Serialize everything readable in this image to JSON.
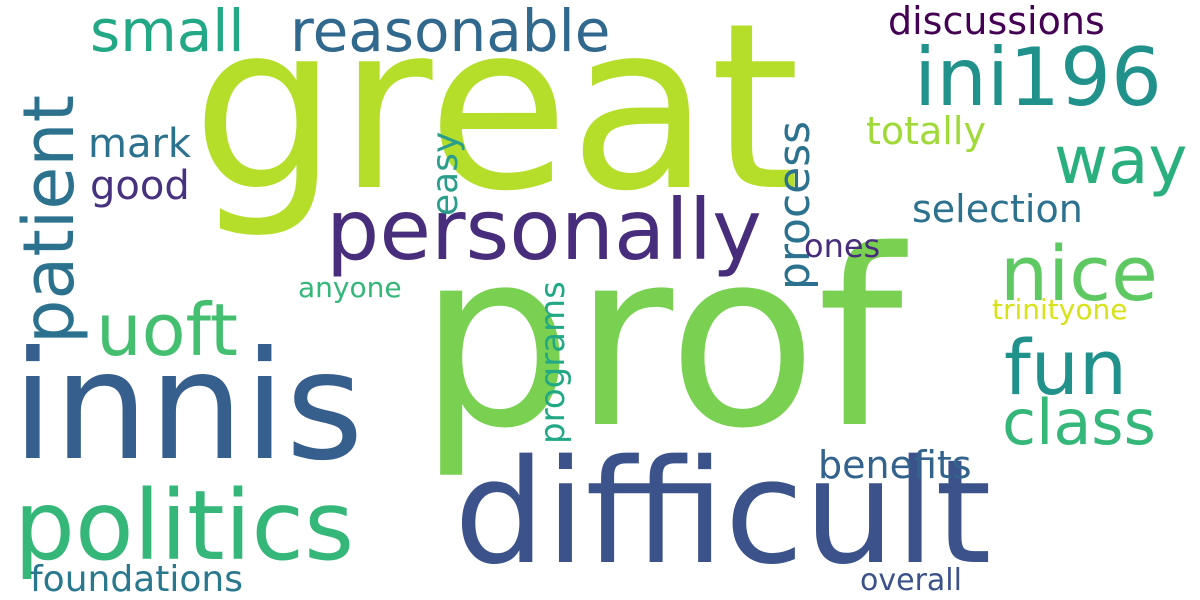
{
  "colors": {
    "background": "#ffffff",
    "lime": "#b5de2b",
    "green": "#7ad151",
    "light_green": "#44bf70",
    "teal": "#22a884",
    "cyan": "#21918c",
    "blue": "#2c728e",
    "indigo": "#3b528b",
    "purple": "#472d7b",
    "dark_purple": "#440154",
    "yellow": "#d8e219"
  },
  "words": [
    {
      "id": "great",
      "text": "great"
    },
    {
      "id": "prof",
      "text": "prof"
    },
    {
      "id": "innis",
      "text": "innis"
    },
    {
      "id": "difficult",
      "text": "difficult"
    },
    {
      "id": "personally",
      "text": "personally"
    },
    {
      "id": "politics",
      "text": "politics"
    },
    {
      "id": "patient",
      "text": "patient"
    },
    {
      "id": "uoft",
      "text": "uoft"
    },
    {
      "id": "ini196",
      "text": "ini196"
    },
    {
      "id": "way",
      "text": "way"
    },
    {
      "id": "nice",
      "text": "nice"
    },
    {
      "id": "fun",
      "text": "fun"
    },
    {
      "id": "class",
      "text": "class"
    },
    {
      "id": "reasonable",
      "text": "reasonable"
    },
    {
      "id": "small",
      "text": "small"
    },
    {
      "id": "process",
      "text": "process"
    },
    {
      "id": "discussions",
      "text": "discussions"
    },
    {
      "id": "selection",
      "text": "selection"
    },
    {
      "id": "benefits",
      "text": "benefits"
    },
    {
      "id": "programs",
      "text": "programs"
    },
    {
      "id": "totally",
      "text": "totally"
    },
    {
      "id": "mark",
      "text": "mark"
    },
    {
      "id": "good",
      "text": "good"
    },
    {
      "id": "easy",
      "text": "easy"
    },
    {
      "id": "foundations",
      "text": "foundations"
    },
    {
      "id": "ones",
      "text": "ones"
    },
    {
      "id": "anyone",
      "text": "anyone"
    },
    {
      "id": "trinityone",
      "text": "trinityone"
    },
    {
      "id": "overall",
      "text": "overall"
    }
  ]
}
